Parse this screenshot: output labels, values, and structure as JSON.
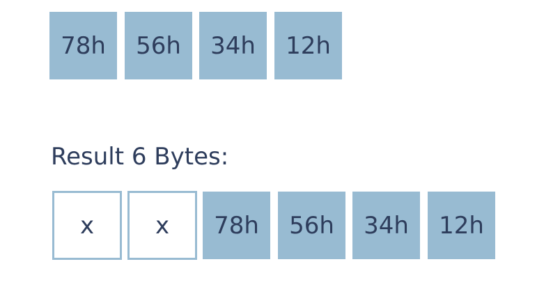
{
  "source": {
    "bytes": [
      "78h",
      "56h",
      "34h",
      "12h"
    ]
  },
  "result": {
    "heading": "Result 6 Bytes:",
    "padding_bytes": [
      "x",
      "x"
    ],
    "bytes": [
      "78h",
      "56h",
      "34h",
      "12h"
    ]
  },
  "colors": {
    "byte_fill": "#98bbd2",
    "text": "#2e3d5c",
    "background": "#ffffff"
  }
}
